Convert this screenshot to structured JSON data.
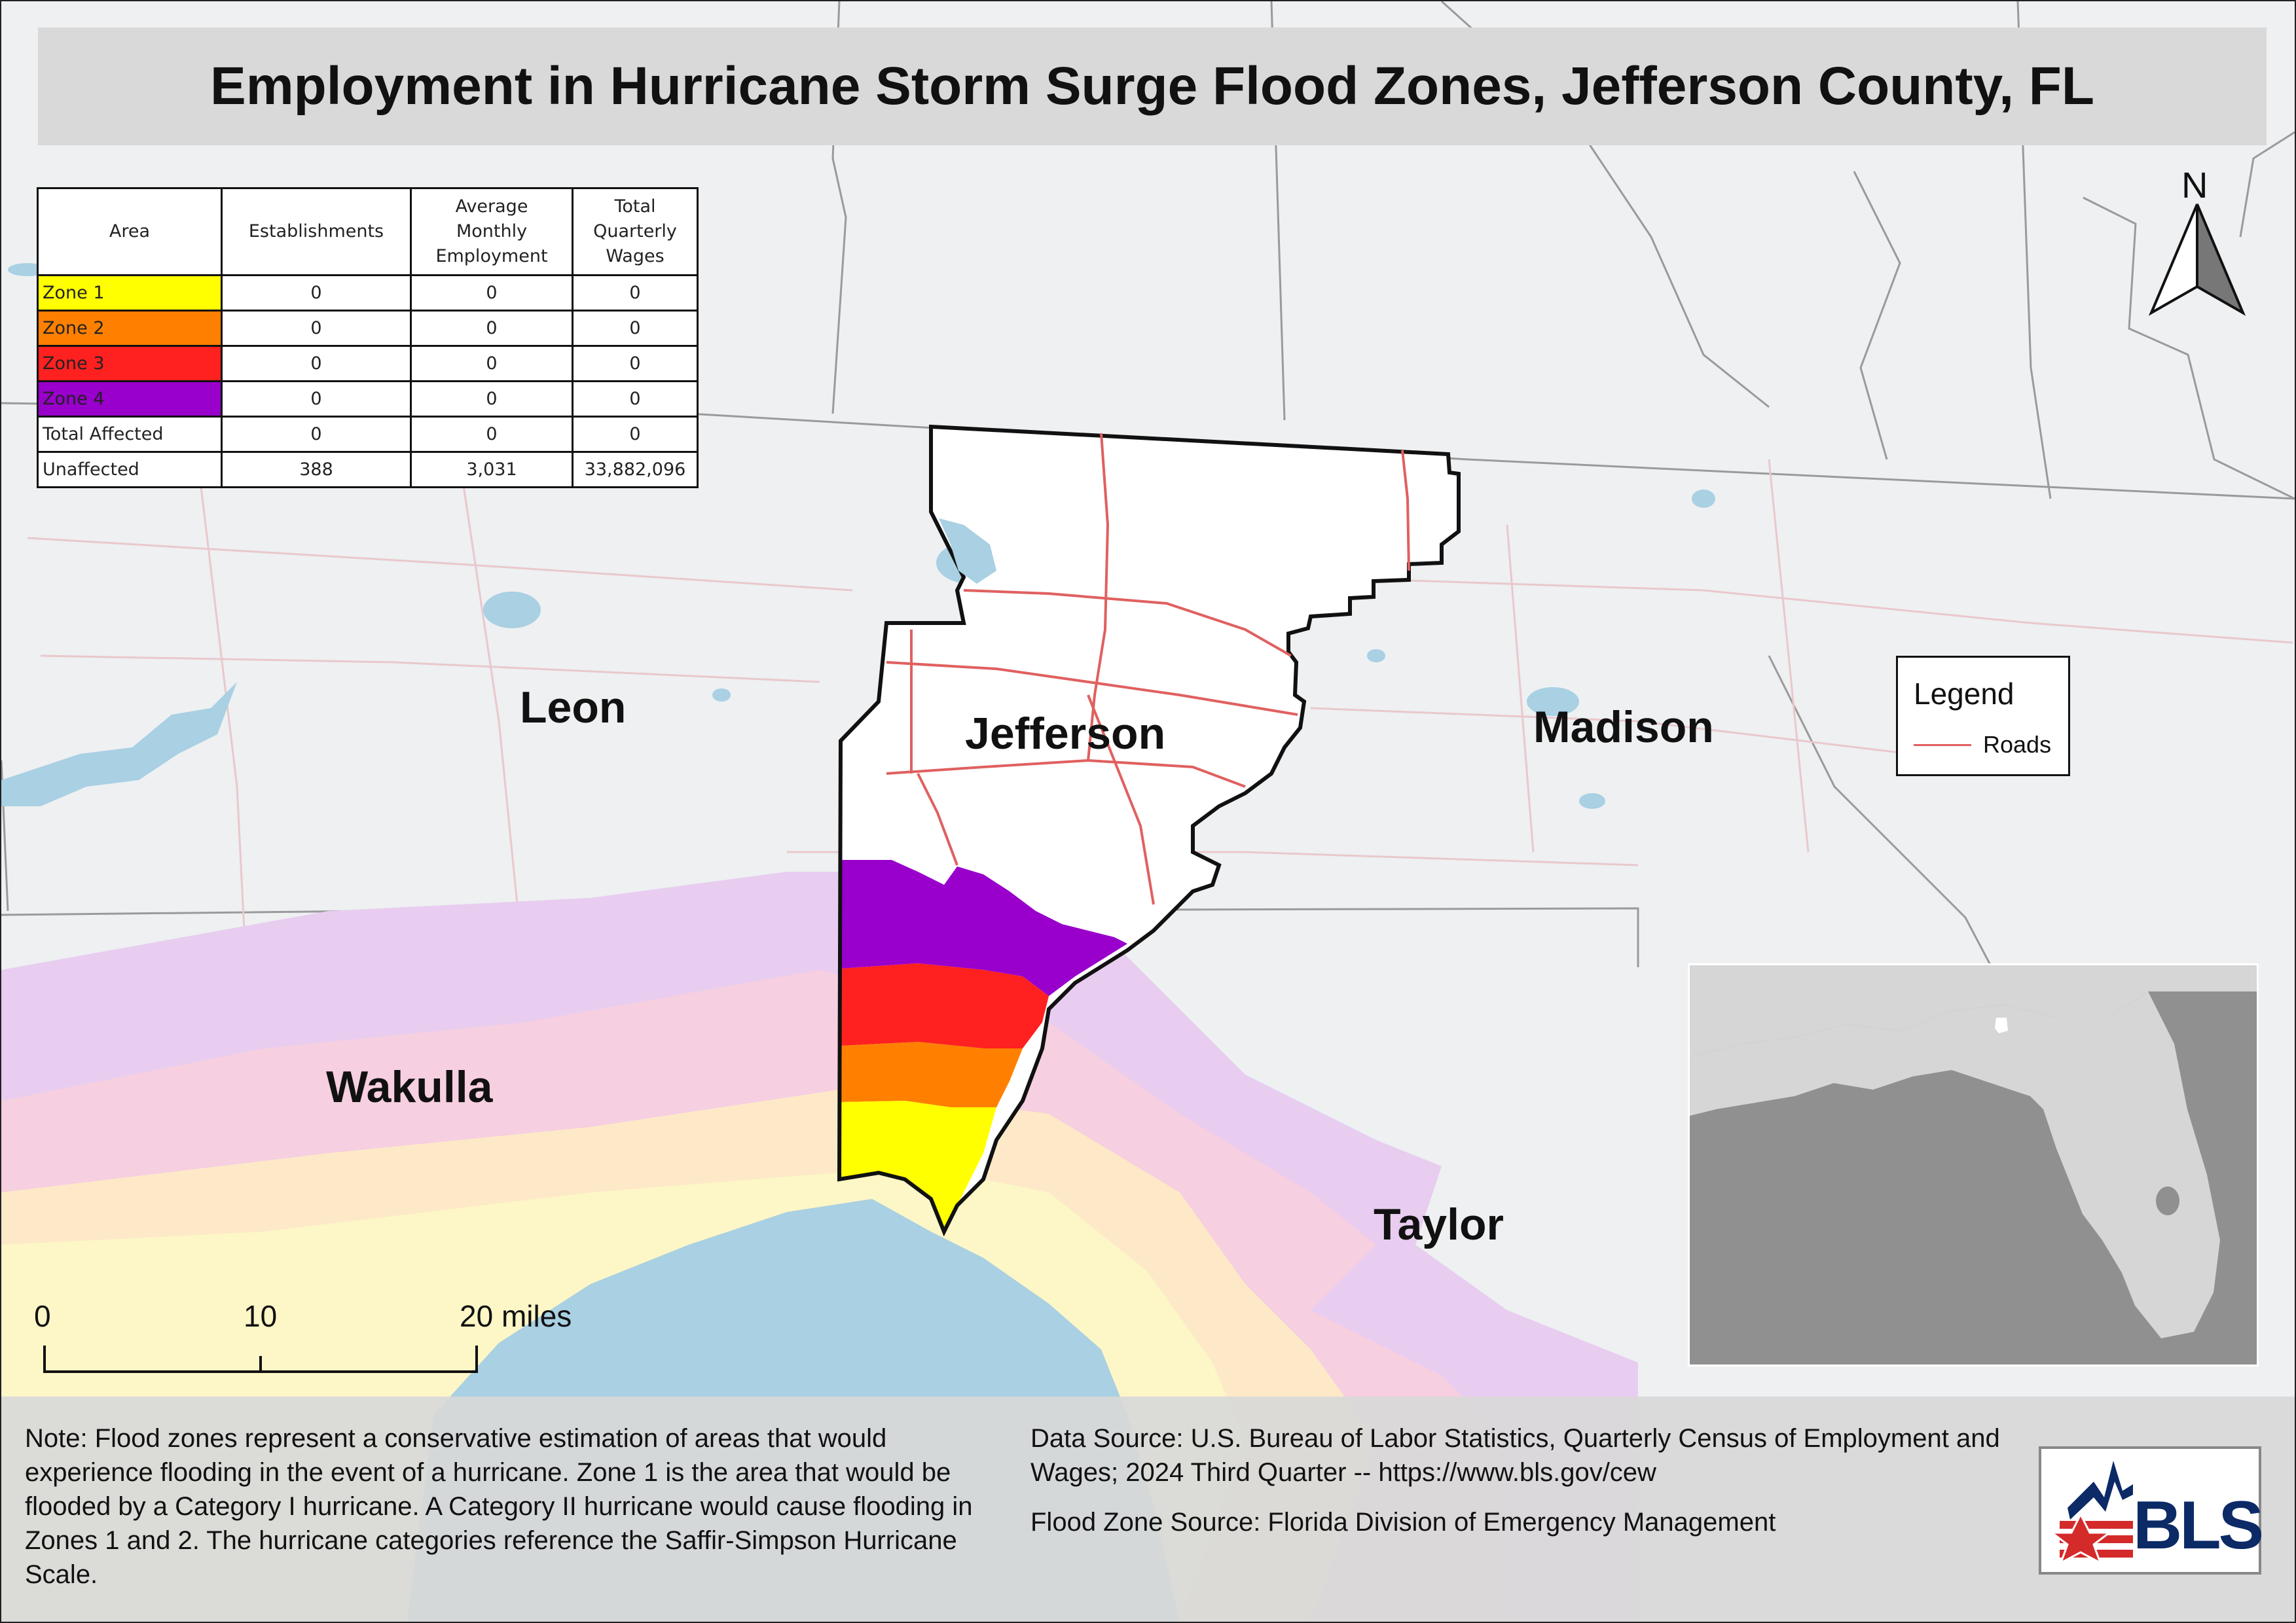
{
  "title": "Employment in Hurricane Storm Surge Flood Zones, Jefferson County, FL",
  "colors": {
    "zone1": "#ffff00",
    "zone2": "#ff8000",
    "zone3": "#ff2020",
    "zone4": "#9900cc",
    "roads": "#e06060",
    "water": "#a9d0e3",
    "bls_blue": "#0b2a66",
    "bls_red": "#d42a2a"
  },
  "table": {
    "headers": {
      "area": "Area",
      "establishments": "Establishments",
      "employment_1": "Average",
      "employment_2": "Monthly",
      "employment_3": "Employment",
      "wages_1": "Total",
      "wages_2": "Quarterly",
      "wages_3": "Wages"
    },
    "rows": [
      {
        "area": "Zone 1",
        "establishments": "0",
        "employment": "0",
        "wages": "0",
        "color": "#ffff00"
      },
      {
        "area": "Zone 2",
        "establishments": "0",
        "employment": "0",
        "wages": "0",
        "color": "#ff8000"
      },
      {
        "area": "Zone 3",
        "establishments": "0",
        "employment": "0",
        "wages": "0",
        "color": "#ff2020"
      },
      {
        "area": "Zone 4",
        "establishments": "0",
        "employment": "0",
        "wages": "0",
        "color": "#9900cc"
      },
      {
        "area": "Total Affected",
        "establishments": "0",
        "employment": "0",
        "wages": "0",
        "color": "#ffffff"
      },
      {
        "area": "Unaffected",
        "establishments": "388",
        "employment": "3,031",
        "wages": "33,882,096",
        "color": "#ffffff"
      }
    ]
  },
  "counties": {
    "leon": "Leon",
    "jefferson": "Jefferson",
    "madison": "Madison",
    "wakulla": "Wakulla",
    "taylor": "Taylor"
  },
  "legend": {
    "title": "Legend",
    "roads": "Roads"
  },
  "north_label": "N",
  "scale": {
    "zero": "0",
    "ten": "10",
    "twenty": "20 miles"
  },
  "note": "Note: Flood zones represent a conservative estimation of areas that would experience flooding in the event of a hurricane. Zone 1 is the area that would be flooded by a Category I hurricane. A Category II hurricane would cause flooding in Zones 1 and 2. The hurricane categories reference the Saffir-Simpson Hurricane Scale.",
  "data_source": "Data Source: U.S. Bureau of Labor Statistics, Quarterly Census of Employment and Wages; 2024 Third Quarter -- https://www.bls.gov/cew",
  "flood_zone_source": "Flood Zone Source: Florida Division of Emergency Management",
  "logo_text": "BLS"
}
